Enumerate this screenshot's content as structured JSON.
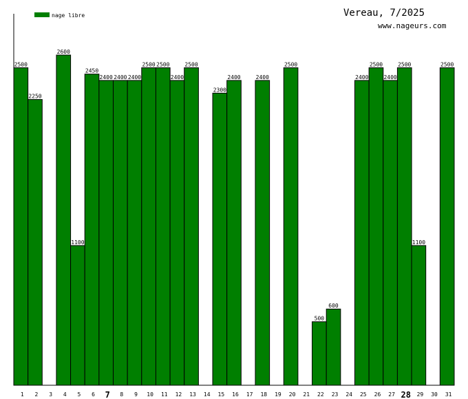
{
  "chart_data": {
    "type": "bar",
    "title": "Vereau, 7/2025",
    "subtitle": "www.nageurs.com",
    "legend": [
      {
        "label": "nage libre",
        "color": "#007f00"
      }
    ],
    "legend_position": "top-left",
    "categories": [
      "1",
      "2",
      "3",
      "4",
      "5",
      "6",
      "7",
      "8",
      "9",
      "10",
      "11",
      "12",
      "13",
      "14",
      "15",
      "16",
      "17",
      "18",
      "19",
      "20",
      "21",
      "22",
      "23",
      "24",
      "25",
      "26",
      "27",
      "28",
      "29",
      "30",
      "31"
    ],
    "bold_categories": [
      "7",
      "28"
    ],
    "series": [
      {
        "name": "nage libre",
        "color": "#007f00",
        "values": [
          2500,
          2250,
          null,
          2600,
          1100,
          2450,
          2400,
          2400,
          2400,
          2500,
          2500,
          2400,
          2500,
          null,
          2300,
          2400,
          null,
          2400,
          null,
          2500,
          null,
          500,
          600,
          null,
          2400,
          2500,
          2400,
          2500,
          1100,
          null,
          2500
        ]
      }
    ],
    "ylim": [
      0,
      2925
    ],
    "grid": false
  }
}
